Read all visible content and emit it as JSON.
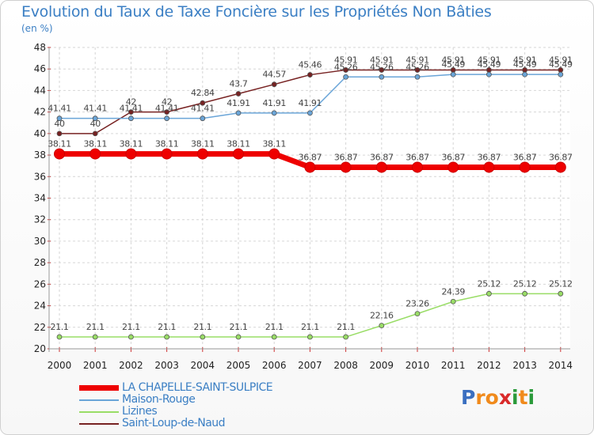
{
  "title": "Evolution du Taux de Taxe Foncière sur les Propriétés Non Bâties",
  "subtitle": "(en %)",
  "logo": {
    "letters": [
      "P",
      "r",
      "o",
      "x",
      "i",
      "t",
      "i"
    ]
  },
  "chart_data": {
    "type": "line",
    "x": [
      "2000",
      "2001",
      "2002",
      "2003",
      "2004",
      "2005",
      "2006",
      "2007",
      "2008",
      "2009",
      "2010",
      "2011",
      "2012",
      "2013",
      "2014"
    ],
    "ylim": [
      20,
      48
    ],
    "yticks": [
      20,
      22,
      24,
      26,
      28,
      30,
      32,
      34,
      36,
      38,
      40,
      42,
      44,
      46,
      48
    ],
    "grid": true,
    "legend_position": "bottom",
    "series": [
      {
        "name": "LA CHAPELLE-SAINT-SULPICE",
        "color": "#ee0000",
        "values": [
          38.11,
          38.11,
          38.11,
          38.11,
          38.11,
          38.11,
          38.11,
          36.87,
          36.87,
          36.87,
          36.87,
          36.87,
          36.87,
          36.87,
          36.87
        ],
        "labels": [
          "38.11",
          "38.11",
          "38.11",
          "38.11",
          "38.11",
          "38.11",
          "38.11",
          "36.87",
          "36.87",
          "36.87",
          "36.87",
          "36.87",
          "36.87",
          "36.87",
          "36.87"
        ]
      },
      {
        "name": "Maison-Rouge",
        "color": "#6aa5d8",
        "values": [
          41.41,
          41.41,
          41.41,
          41.41,
          41.41,
          41.91,
          41.91,
          41.91,
          45.26,
          45.26,
          45.26,
          45.49,
          45.49,
          45.49,
          45.49
        ],
        "labels": [
          "41.41",
          "41.41",
          "41.41",
          "41.41",
          "41.41",
          "41.91",
          "41.91",
          "41.91",
          "45.26",
          "45.26",
          "45.26",
          "45.49",
          "45.49",
          "45.49",
          "45.49"
        ]
      },
      {
        "name": "Lizines",
        "color": "#99dd66",
        "values": [
          21.1,
          21.1,
          21.1,
          21.1,
          21.1,
          21.1,
          21.1,
          21.1,
          21.1,
          22.16,
          23.26,
          24.39,
          25.12,
          25.12,
          25.12
        ],
        "labels": [
          "21.1",
          "21.1",
          "21.1",
          "21.1",
          "21.1",
          "21.1",
          "21.1",
          "21.1",
          "21.1",
          "22.16",
          "23.26",
          "24.39",
          "25.12",
          "25.12",
          "25.12"
        ]
      },
      {
        "name": "Saint-Loup-de-Naud",
        "color": "#772222",
        "values": [
          40,
          40,
          42,
          42,
          42.84,
          43.7,
          44.57,
          45.46,
          45.91,
          45.91,
          45.91,
          45.91,
          45.91,
          45.91,
          45.91
        ],
        "labels": [
          "40",
          "40",
          "42",
          "42",
          "42.84",
          "43.7",
          "44.57",
          "45.46",
          "45.91",
          "45.91",
          "45.91",
          "45.91",
          "45.91",
          "45.91",
          "45.91"
        ]
      }
    ]
  }
}
